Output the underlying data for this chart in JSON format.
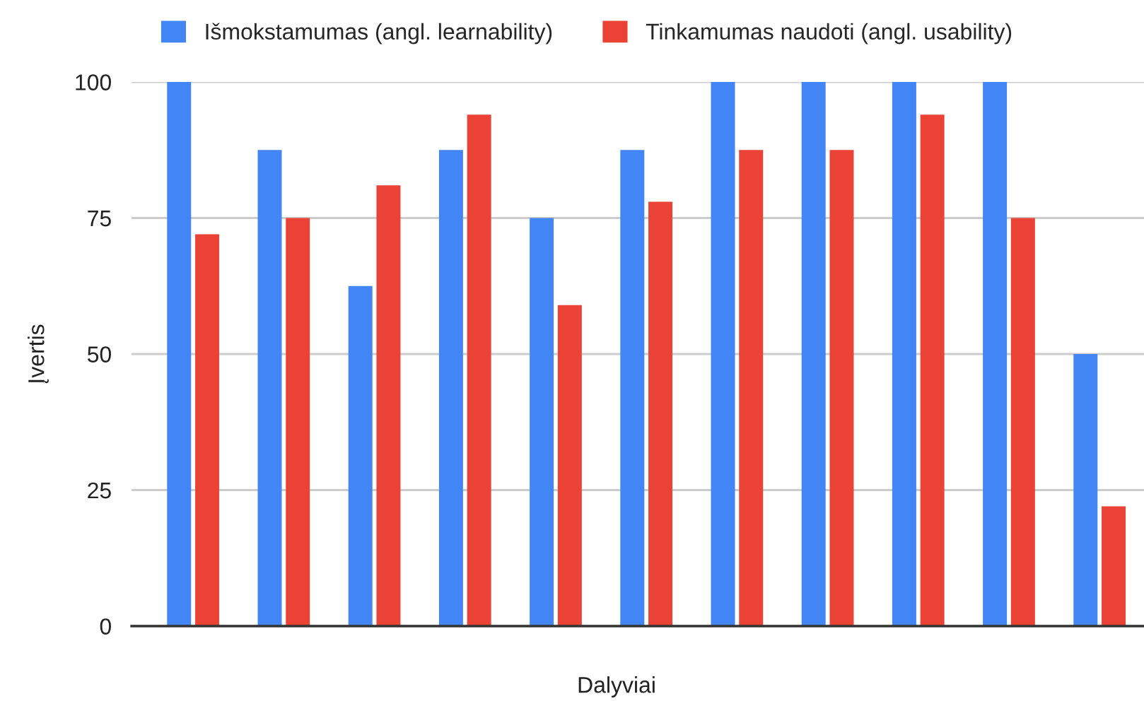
{
  "chart_data": {
    "type": "bar",
    "xlabel": "Dalyviai",
    "ylabel": "Įvertis",
    "categories": [
      null,
      null,
      null,
      null,
      null,
      null,
      null,
      null,
      null,
      null,
      null
    ],
    "series": [
      {
        "name": "Išmokstamumas (angl. learnability)",
        "color": "#4285f4",
        "values": [
          100,
          87.5,
          62.5,
          87.5,
          75,
          87.5,
          100,
          100,
          100,
          100,
          50
        ]
      },
      {
        "name": "Tinkamumas naudoti (angl. usability)",
        "color": "#ea4335",
        "values": [
          72,
          75,
          81,
          94,
          59,
          78,
          87.5,
          87.5,
          94,
          75,
          22
        ]
      }
    ],
    "ylim": [
      0,
      100
    ],
    "yticks": [
      0,
      25,
      50,
      75,
      100
    ],
    "grid": "y",
    "legend": "top"
  }
}
